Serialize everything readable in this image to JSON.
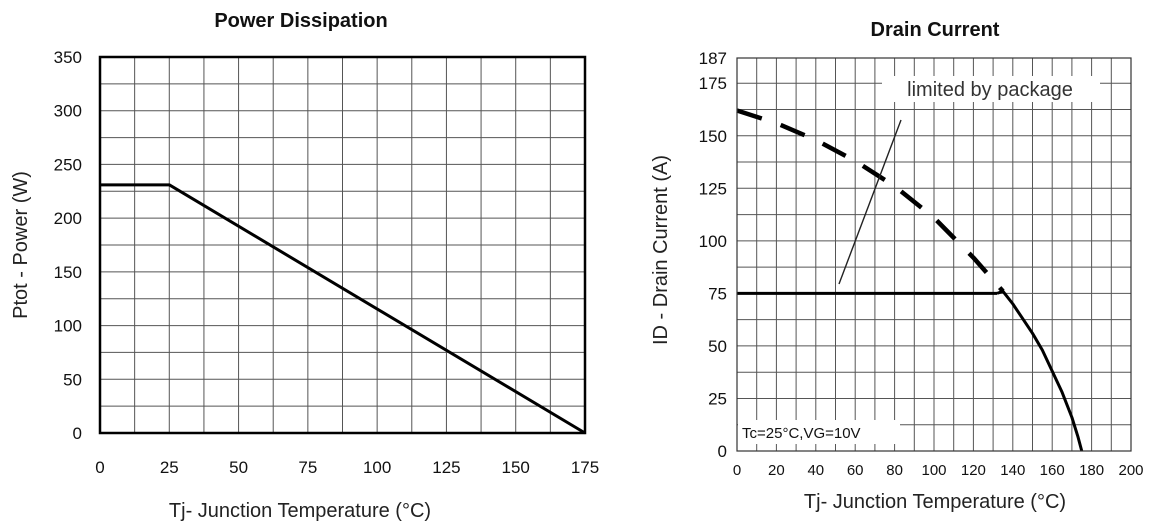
{
  "chart_data": [
    {
      "type": "line",
      "title": "Power Dissipation",
      "xlabel": "Tj- Junction Temperature (°C)",
      "ylabel": "Ptot - Power (W)",
      "xlim": [
        0,
        175
      ],
      "ylim": [
        0,
        350
      ],
      "xticks": [
        0,
        25,
        50,
        75,
        100,
        125,
        150,
        175
      ],
      "yticks": [
        0,
        50,
        100,
        150,
        200,
        250,
        300,
        350
      ],
      "grid": true,
      "series": [
        {
          "x": [
            0,
            25,
            175
          ],
          "y": [
            231,
            231,
            0
          ],
          "style": "solid"
        }
      ]
    },
    {
      "type": "line",
      "title": "Drain Current",
      "xlabel": "Tj- Junction Temperature (°C)",
      "ylabel": "ID - Drain Current (A)",
      "xlim": [
        0,
        200
      ],
      "ylim": [
        0,
        187
      ],
      "xticks": [
        0,
        20,
        40,
        60,
        80,
        100,
        120,
        140,
        160,
        180,
        200
      ],
      "yticks": [
        0,
        25,
        50,
        75,
        100,
        125,
        150,
        175,
        187
      ],
      "grid": true,
      "annotations": [
        "limited by package",
        "Tc=25°C,VG=10V"
      ],
      "series": [
        {
          "style": "dashed",
          "x": [
            0,
            20,
            40,
            60,
            80,
            100,
            120,
            135
          ],
          "y": [
            162,
            156,
            148,
            138,
            126,
            111,
            92,
            76
          ]
        },
        {
          "style": "solid",
          "x": [
            0,
            132
          ],
          "y": [
            75,
            75
          ]
        },
        {
          "style": "solid",
          "x": [
            132,
            135,
            140,
            145,
            150,
            155,
            160,
            165,
            170,
            173,
            175
          ],
          "y": [
            75,
            76,
            70,
            63,
            56,
            48,
            38,
            28,
            16,
            7,
            0
          ]
        }
      ]
    }
  ]
}
